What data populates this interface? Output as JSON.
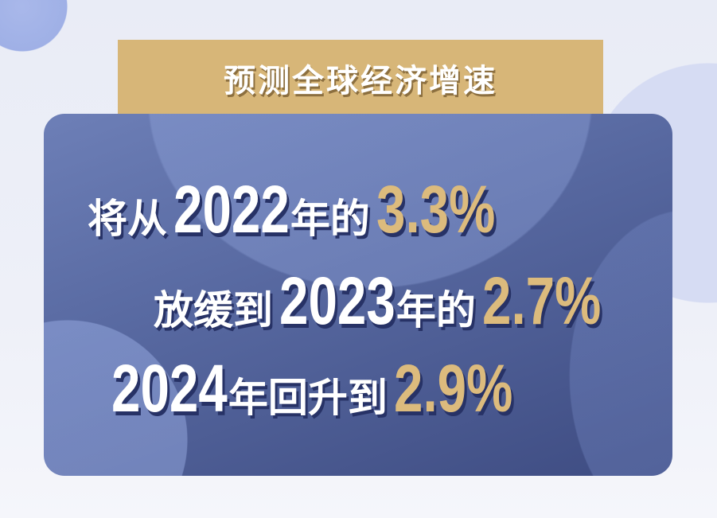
{
  "title": "预测全球经济增速",
  "lines": [
    {
      "pre": "将从",
      "year": "2022",
      "mid": "年的",
      "value": "3.3%"
    },
    {
      "pre": "放缓到",
      "year": "2023",
      "mid": "年的",
      "value": "2.7%"
    },
    {
      "year": "2024",
      "mid": "年回升到",
      "value": "2.9%"
    }
  ],
  "colors": {
    "gold": "#d7b678",
    "card": "#56679f",
    "background": "#eef0f8"
  }
}
